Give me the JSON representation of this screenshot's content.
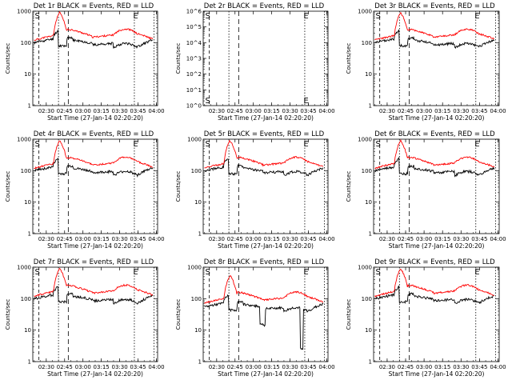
{
  "colors": {
    "events": "#000000",
    "lld": "#ff0000",
    "axes": "#000000"
  },
  "chart_data": [
    {
      "type": "line",
      "title": "Det 1r BLACK = Events, RED = LLD",
      "ylabel": "Counts/sec",
      "xlabel": "Start Time (27-Jan-14 02:20:20)",
      "y_scale": "log",
      "ylim": [
        1,
        1000
      ],
      "y_ticks": [
        "1",
        "10",
        "100",
        "1000"
      ],
      "x_ticks": [
        "02:30",
        "02:45",
        "03:00",
        "03:15",
        "03:30",
        "03:45",
        "04:00"
      ],
      "markers": {
        "start": "S",
        "end": "E"
      },
      "profile": "normal",
      "series": [
        {
          "name": "Events",
          "color": "#000000"
        },
        {
          "name": "LLD",
          "color": "#ff0000"
        }
      ]
    },
    {
      "type": "line",
      "title": "Det 2r BLACK = Events, RED = LLD",
      "ylabel": "Counts/sec",
      "xlabel": "Start Time (27-Jan-14 02:20:20)",
      "y_scale": "log",
      "ylim": [
        1,
        1000000
      ],
      "y_ticks": [
        "10^0",
        "10^1",
        "10^2",
        "10^3",
        "10^4",
        "10^5",
        "10^6"
      ],
      "x_ticks": [
        "02:30",
        "02:45",
        "03:00",
        "03:15",
        "03:30",
        "03:45",
        "04:00"
      ],
      "markers": {
        "start": "S",
        "end": "E"
      },
      "profile": "empty",
      "series": []
    },
    {
      "type": "line",
      "title": "Det 3r BLACK = Events, RED = LLD",
      "ylabel": "Counts/sec",
      "xlabel": "Start Time (27-Jan-14 02:20:20)",
      "y_scale": "log",
      "ylim": [
        1,
        1000
      ],
      "y_ticks": [
        "1",
        "10",
        "100",
        "1000"
      ],
      "x_ticks": [
        "02:30",
        "02:45",
        "03:00",
        "03:15",
        "03:30",
        "03:45",
        "04:00"
      ],
      "markers": {
        "start": "S",
        "end": "E"
      },
      "profile": "normal",
      "series": [
        {
          "name": "Events",
          "color": "#000000"
        },
        {
          "name": "LLD",
          "color": "#ff0000"
        }
      ]
    },
    {
      "type": "line",
      "title": "Det 4r BLACK = Events, RED = LLD",
      "ylabel": "Counts/sec",
      "xlabel": "Start Time (27-Jan-14 02:20:20)",
      "y_scale": "log",
      "ylim": [
        1,
        1000
      ],
      "y_ticks": [
        "1",
        "10",
        "100",
        "1000"
      ],
      "x_ticks": [
        "02:30",
        "02:45",
        "03:00",
        "03:15",
        "03:30",
        "03:45",
        "04:00"
      ],
      "markers": {
        "start": "S",
        "end": "E"
      },
      "profile": "normal",
      "series": [
        {
          "name": "Events",
          "color": "#000000"
        },
        {
          "name": "LLD",
          "color": "#ff0000"
        }
      ]
    },
    {
      "type": "line",
      "title": "Det 5r BLACK = Events, RED = LLD",
      "ylabel": "Counts/sec",
      "xlabel": "Start Time (27-Jan-14 02:20:20)",
      "y_scale": "log",
      "ylim": [
        1,
        1000
      ],
      "y_ticks": [
        "1",
        "10",
        "100",
        "1000"
      ],
      "x_ticks": [
        "02:30",
        "02:45",
        "03:00",
        "03:15",
        "03:30",
        "03:45",
        "04:00"
      ],
      "markers": {
        "start": "S",
        "end": "E"
      },
      "profile": "normal",
      "series": [
        {
          "name": "Events",
          "color": "#000000"
        },
        {
          "name": "LLD",
          "color": "#ff0000"
        }
      ]
    },
    {
      "type": "line",
      "title": "Det 6r BLACK = Events, RED = LLD",
      "ylabel": "Counts/sec",
      "xlabel": "Start Time (27-Jan-14 02:20:20)",
      "y_scale": "log",
      "ylim": [
        1,
        1000
      ],
      "y_ticks": [
        "1",
        "10",
        "100",
        "1000"
      ],
      "x_ticks": [
        "02:30",
        "02:45",
        "03:00",
        "03:15",
        "03:30",
        "03:45",
        "04:00"
      ],
      "markers": {
        "start": "S",
        "end": "E"
      },
      "profile": "normal",
      "series": [
        {
          "name": "Events",
          "color": "#000000"
        },
        {
          "name": "LLD",
          "color": "#ff0000"
        }
      ]
    },
    {
      "type": "line",
      "title": "Det 7r BLACK = Events, RED = LLD",
      "ylabel": "Counts/sec",
      "xlabel": "Start Time (27-Jan-14 02:20:20)",
      "y_scale": "log",
      "ylim": [
        1,
        1000
      ],
      "y_ticks": [
        "1",
        "10",
        "100",
        "1000"
      ],
      "x_ticks": [
        "02:30",
        "02:45",
        "03:00",
        "03:15",
        "03:30",
        "03:45",
        "04:00"
      ],
      "markers": {
        "start": "S",
        "end": "E"
      },
      "profile": "normal",
      "series": [
        {
          "name": "Events",
          "color": "#000000"
        },
        {
          "name": "LLD",
          "color": "#ff0000"
        }
      ]
    },
    {
      "type": "line",
      "title": "Det 8r BLACK = Events, RED = LLD",
      "ylabel": "Counts/sec",
      "xlabel": "Start Time (27-Jan-14 02:20:20)",
      "y_scale": "log",
      "ylim": [
        1,
        1000
      ],
      "y_ticks": [
        "1",
        "10",
        "100",
        "1000"
      ],
      "x_ticks": [
        "02:30",
        "02:45",
        "03:00",
        "03:15",
        "03:30",
        "03:45",
        "04:00"
      ],
      "markers": {
        "start": "S",
        "end": "E"
      },
      "profile": "det8",
      "series": [
        {
          "name": "Events",
          "color": "#000000"
        },
        {
          "name": "LLD",
          "color": "#ff0000"
        }
      ]
    },
    {
      "type": "line",
      "title": "Det 9r BLACK = Events, RED = LLD",
      "ylabel": "Counts/sec",
      "xlabel": "Start Time (27-Jan-14 02:20:20)",
      "y_scale": "log",
      "ylim": [
        1,
        1000
      ],
      "y_ticks": [
        "1",
        "10",
        "100",
        "1000"
      ],
      "x_ticks": [
        "02:30",
        "02:45",
        "03:00",
        "03:15",
        "03:30",
        "03:45",
        "04:00"
      ],
      "markers": {
        "start": "S",
        "end": "E"
      },
      "profile": "normal",
      "series": [
        {
          "name": "Events",
          "color": "#000000"
        },
        {
          "name": "LLD",
          "color": "#ff0000"
        }
      ]
    }
  ]
}
